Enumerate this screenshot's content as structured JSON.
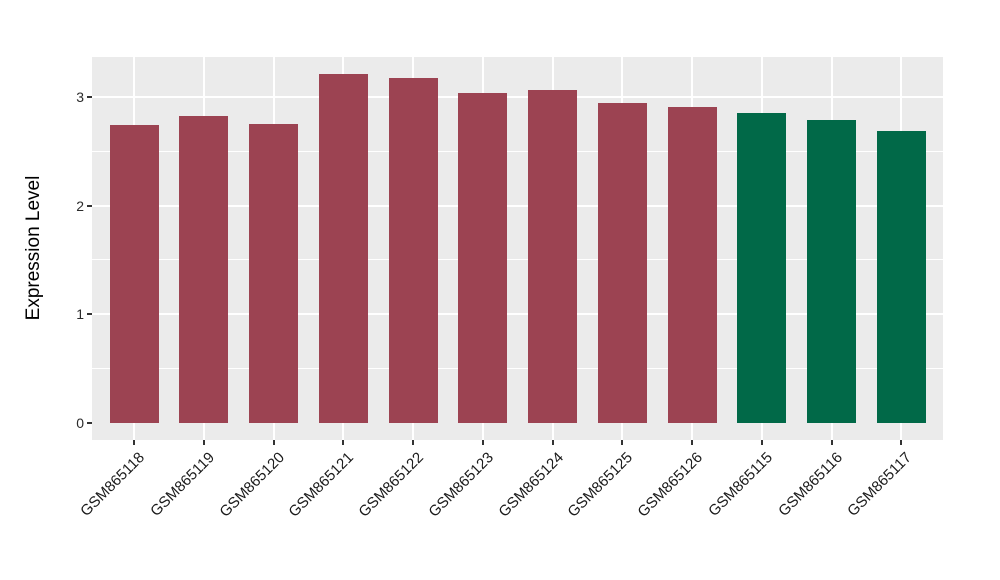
{
  "chart_data": {
    "type": "bar",
    "title": "",
    "xlabel": "",
    "ylabel": "Expression Level",
    "categories": [
      "GSM865118",
      "GSM865119",
      "GSM865120",
      "GSM865121",
      "GSM865122",
      "GSM865123",
      "GSM865124",
      "GSM865125",
      "GSM865126",
      "GSM865115",
      "GSM865116",
      "GSM865117"
    ],
    "values": [
      2.74,
      2.82,
      2.75,
      3.21,
      3.17,
      3.04,
      3.06,
      2.94,
      2.91,
      2.85,
      2.79,
      2.69
    ],
    "bar_colors": [
      "#9C4352",
      "#9C4352",
      "#9C4352",
      "#9C4352",
      "#9C4352",
      "#9C4352",
      "#9C4352",
      "#9C4352",
      "#9C4352",
      "#016948",
      "#016948",
      "#016948"
    ],
    "group_colors": {
      "maroon_group": "#9C4352",
      "green_group": "#016948"
    },
    "ylim": [
      0,
      3.37
    ],
    "yticks": [
      0,
      1,
      2,
      3
    ],
    "ytick_labels": [
      "0",
      "1",
      "2",
      "3"
    ],
    "yticks_minor": [
      0.5,
      1.5,
      2.5
    ],
    "grid": "on",
    "legend": "none",
    "panel_background": "#EBEBEB",
    "grid_color": "#FFFFFF",
    "tick_mark_color": "#333333"
  }
}
